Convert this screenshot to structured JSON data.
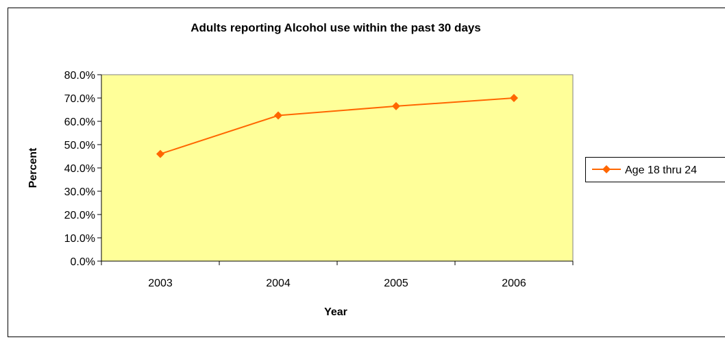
{
  "chart_data": {
    "type": "line",
    "title": "Adults reporting Alcohol use within the past 30 days",
    "xlabel": "Year",
    "ylabel": "Percent",
    "categories": [
      "2003",
      "2004",
      "2005",
      "2006"
    ],
    "series": [
      {
        "name": "Age 18 thru 24",
        "values": [
          46.0,
          62.5,
          66.5,
          70.0
        ],
        "color": "#FF6600",
        "marker": "diamond"
      }
    ],
    "ylim": [
      0,
      80
    ],
    "yticks": [
      {
        "value": 0,
        "label": "0.0%"
      },
      {
        "value": 10,
        "label": "10.0%"
      },
      {
        "value": 20,
        "label": "20.0%"
      },
      {
        "value": 30,
        "label": "30.0%"
      },
      {
        "value": 40,
        "label": "40.0%"
      },
      {
        "value": 50,
        "label": "50.0%"
      },
      {
        "value": 60,
        "label": "60.0%"
      },
      {
        "value": 70,
        "label": "70.0%"
      },
      {
        "value": 80,
        "label": "80.0%"
      }
    ],
    "grid": false,
    "legend_position": "right",
    "plot_background": "#FFFF99",
    "page_background": "#FFFFFF"
  }
}
